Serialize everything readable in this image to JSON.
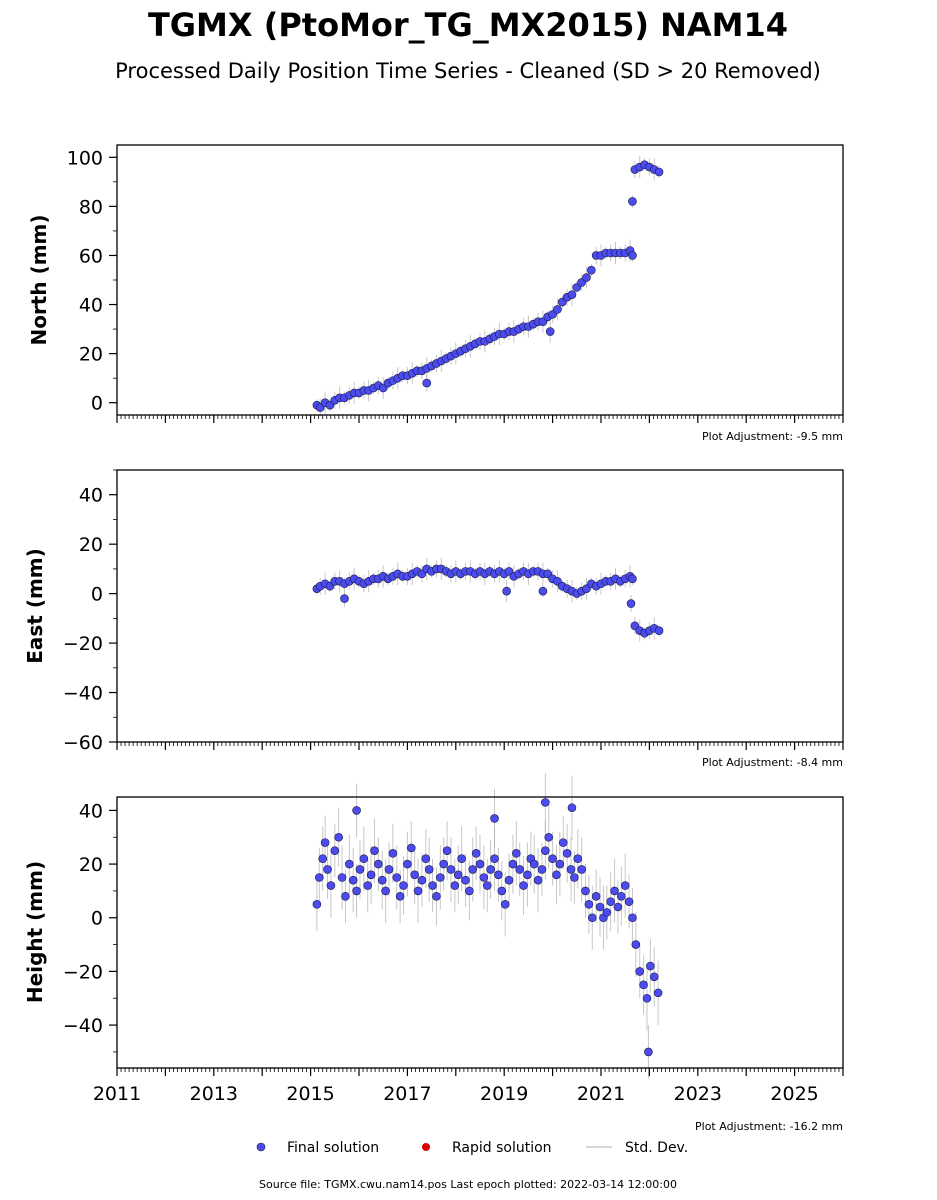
{
  "header": {
    "title": "TGMX (PtoMor_TG_MX2015) NAM14",
    "subtitle": "Processed Daily Position Time Series - Cleaned (SD > 20 Removed)"
  },
  "legend": {
    "final": "Final solution",
    "rapid": "Rapid solution",
    "std": "Std. Dev."
  },
  "footer": {
    "source": "Source file: TGMX.cwu.nam14.pos  Last epoch plotted: 2022-03-14 12:00:00"
  },
  "colors": {
    "final_fill": "#4b4bf0",
    "final_edge": "#1a1a40",
    "rapid": "#dd0000",
    "std": "#b0b0b0"
  },
  "chart_data": [
    {
      "type": "scatter",
      "ylabel": "North (mm)",
      "adjustment": "Plot Adjustment: -9.5 mm",
      "xlim": [
        2011,
        2026
      ],
      "ylim": [
        -5,
        105
      ],
      "yticks": [
        0,
        20,
        40,
        60,
        80,
        100
      ],
      "ytick_labels": [
        "0",
        "20",
        "40",
        "60",
        "80",
        "100"
      ],
      "xticks": [
        2011,
        2013,
        2015,
        2017,
        2019,
        2021,
        2023,
        2025
      ],
      "xtick_labels": [
        "2011",
        "2013",
        "2015",
        "2017",
        "2019",
        "2021",
        "2023",
        "2025"
      ],
      "show_x_labels": false,
      "series": [
        {
          "name": "Final solution",
          "x": [
            2015.13,
            2015.2,
            2015.3,
            2015.4,
            2015.5,
            2015.6,
            2015.7,
            2015.8,
            2015.9,
            2016.0,
            2016.1,
            2016.2,
            2016.3,
            2016.4,
            2016.5,
            2016.6,
            2016.7,
            2016.8,
            2016.9,
            2017.0,
            2017.1,
            2017.2,
            2017.3,
            2017.4,
            2017.5,
            2017.6,
            2017.7,
            2017.8,
            2017.9,
            2018.0,
            2018.1,
            2018.2,
            2018.3,
            2018.4,
            2018.5,
            2018.6,
            2018.7,
            2018.8,
            2018.9,
            2019.0,
            2019.1,
            2019.2,
            2019.3,
            2019.4,
            2019.5,
            2019.6,
            2019.7,
            2019.8,
            2019.9,
            2020.0,
            2020.1,
            2020.2,
            2020.3,
            2020.4,
            2020.5,
            2020.6,
            2020.7,
            2020.8,
            2020.9,
            2021.0,
            2021.1,
            2021.2,
            2021.3,
            2021.4,
            2021.5,
            2021.6,
            2021.65,
            2021.7,
            2021.8,
            2021.9,
            2022.0,
            2022.1,
            2022.2,
            2017.4,
            2019.95,
            2021.65
          ],
          "y": [
            -1,
            -2,
            0,
            -1,
            1,
            2,
            2,
            3,
            4,
            4,
            5,
            5,
            6,
            7,
            6,
            8,
            9,
            10,
            11,
            11,
            12,
            13,
            13,
            14,
            15,
            16,
            17,
            18,
            19,
            20,
            21,
            22,
            23,
            24,
            25,
            25,
            26,
            27,
            28,
            28,
            29,
            29,
            30,
            31,
            31,
            32,
            33,
            33,
            35,
            36,
            38,
            41,
            43,
            44,
            47,
            49,
            51,
            54,
            60,
            60,
            61,
            61,
            61,
            61,
            61,
            62,
            60,
            95,
            96,
            97,
            96,
            95,
            94,
            8,
            29,
            82
          ]
        },
        {
          "name": "Rapid solution",
          "x": [],
          "y": []
        }
      ]
    },
    {
      "type": "scatter",
      "ylabel": "East (mm)",
      "adjustment": "Plot Adjustment: -8.4 mm",
      "xlim": [
        2011,
        2026
      ],
      "ylim": [
        -60,
        50
      ],
      "yticks": [
        -60,
        -40,
        -20,
        0,
        20,
        40
      ],
      "ytick_labels": [
        "−60",
        "−40",
        "−20",
        "0",
        "20",
        "40"
      ],
      "xticks": [
        2011,
        2013,
        2015,
        2017,
        2019,
        2021,
        2023,
        2025
      ],
      "xtick_labels": [
        "2011",
        "2013",
        "2015",
        "2017",
        "2019",
        "2021",
        "2023",
        "2025"
      ],
      "show_x_labels": false,
      "series": [
        {
          "name": "Final solution",
          "x": [
            2015.13,
            2015.2,
            2015.3,
            2015.4,
            2015.5,
            2015.6,
            2015.7,
            2015.8,
            2015.9,
            2016.0,
            2016.1,
            2016.2,
            2016.3,
            2016.4,
            2016.5,
            2016.6,
            2016.7,
            2016.8,
            2016.9,
            2017.0,
            2017.1,
            2017.2,
            2017.3,
            2017.4,
            2017.5,
            2017.6,
            2017.7,
            2017.8,
            2017.9,
            2018.0,
            2018.1,
            2018.2,
            2018.3,
            2018.4,
            2018.5,
            2018.6,
            2018.7,
            2018.8,
            2018.9,
            2019.0,
            2019.1,
            2019.2,
            2019.3,
            2019.4,
            2019.5,
            2019.6,
            2019.7,
            2019.8,
            2019.9,
            2020.0,
            2020.1,
            2020.2,
            2020.3,
            2020.4,
            2020.5,
            2020.6,
            2020.7,
            2020.8,
            2020.9,
            2021.0,
            2021.1,
            2021.2,
            2021.3,
            2021.4,
            2021.5,
            2021.6,
            2021.65,
            2021.7,
            2021.8,
            2021.9,
            2022.0,
            2022.1,
            2022.2,
            2015.7,
            2019.05,
            2019.8,
            2021.62
          ],
          "y": [
            2,
            3,
            4,
            3,
            5,
            5,
            4,
            5,
            6,
            5,
            4,
            5,
            6,
            6,
            7,
            6,
            7,
            8,
            7,
            7,
            8,
            9,
            8,
            10,
            9,
            10,
            10,
            9,
            8,
            9,
            8,
            9,
            9,
            8,
            9,
            8,
            9,
            8,
            9,
            8,
            9,
            7,
            8,
            9,
            8,
            9,
            9,
            8,
            8,
            6,
            5,
            3,
            2,
            1,
            0,
            1,
            2,
            4,
            3,
            4,
            5,
            5,
            6,
            5,
            6,
            7,
            6,
            -13,
            -15,
            -16,
            -15,
            -14,
            -15,
            -2,
            1,
            1,
            -4
          ]
        },
        {
          "name": "Rapid solution",
          "x": [],
          "y": []
        }
      ]
    },
    {
      "type": "scatter",
      "ylabel": "Height (mm)",
      "adjustment": "Plot Adjustment: -16.2 mm",
      "xlim": [
        2011,
        2026
      ],
      "ylim": [
        -56,
        45
      ],
      "yticks": [
        -40,
        -20,
        0,
        20,
        40
      ],
      "ytick_labels": [
        "−40",
        "−20",
        "0",
        "20",
        "40"
      ],
      "xticks": [
        2011,
        2013,
        2015,
        2017,
        2019,
        2021,
        2023,
        2025
      ],
      "xtick_labels": [
        "2011",
        "2013",
        "2015",
        "2017",
        "2019",
        "2021",
        "2023",
        "2025"
      ],
      "show_x_labels": true,
      "series": [
        {
          "name": "Final solution",
          "x": [
            2015.13,
            2015.18,
            2015.25,
            2015.3,
            2015.35,
            2015.42,
            2015.5,
            2015.58,
            2015.65,
            2015.72,
            2015.8,
            2015.88,
            2015.95,
            2016.02,
            2016.1,
            2016.18,
            2016.25,
            2016.32,
            2016.4,
            2016.48,
            2016.55,
            2016.62,
            2016.7,
            2016.78,
            2016.85,
            2016.92,
            2017.0,
            2017.08,
            2017.15,
            2017.22,
            2017.3,
            2017.38,
            2017.45,
            2017.52,
            2017.6,
            2017.68,
            2017.75,
            2017.82,
            2017.9,
            2017.98,
            2018.05,
            2018.12,
            2018.2,
            2018.28,
            2018.35,
            2018.42,
            2018.5,
            2018.58,
            2018.65,
            2018.72,
            2018.8,
            2018.88,
            2018.95,
            2019.02,
            2019.1,
            2019.18,
            2019.25,
            2019.32,
            2019.4,
            2019.48,
            2019.55,
            2019.62,
            2019.7,
            2019.78,
            2019.85,
            2019.92,
            2020.0,
            2020.08,
            2020.15,
            2020.22,
            2020.3,
            2020.38,
            2020.45,
            2020.52,
            2020.6,
            2020.68,
            2020.75,
            2020.82,
            2020.9,
            2020.98,
            2021.05,
            2021.12,
            2021.2,
            2021.28,
            2021.35,
            2021.42,
            2021.5,
            2021.58,
            2021.65,
            2021.72,
            2021.8,
            2021.88,
            2021.95,
            2022.02,
            2022.1,
            2022.18,
            2015.95,
            2019.85,
            2020.4,
            2021.98,
            2018.8
          ],
          "y": [
            5,
            15,
            22,
            28,
            18,
            12,
            25,
            30,
            15,
            8,
            20,
            14,
            10,
            18,
            22,
            12,
            16,
            25,
            20,
            14,
            10,
            18,
            24,
            15,
            8,
            12,
            20,
            26,
            16,
            10,
            14,
            22,
            18,
            12,
            8,
            15,
            20,
            25,
            18,
            12,
            16,
            22,
            14,
            10,
            18,
            24,
            20,
            15,
            12,
            18,
            22,
            16,
            10,
            5,
            14,
            20,
            24,
            18,
            12,
            16,
            22,
            20,
            14,
            18,
            25,
            30,
            22,
            16,
            20,
            28,
            24,
            18,
            15,
            22,
            18,
            10,
            5,
            0,
            8,
            4,
            0,
            2,
            6,
            10,
            4,
            8,
            12,
            6,
            0,
            -10,
            -20,
            -25,
            -30,
            -18,
            -22,
            -28,
            40,
            43,
            41,
            -50,
            37
          ]
        },
        {
          "name": "Rapid solution",
          "x": [],
          "y": []
        }
      ]
    }
  ]
}
